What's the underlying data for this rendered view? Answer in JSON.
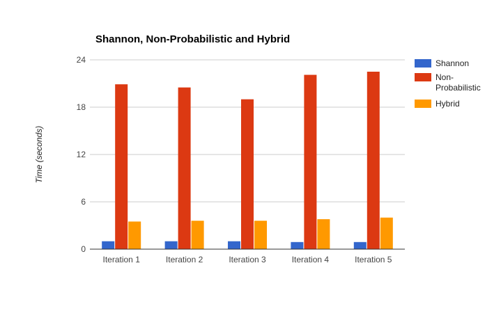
{
  "chart_data": {
    "type": "bar",
    "title": "Shannon, Non-Probabilistic and Hybrid",
    "xlabel": "",
    "ylabel": "Time (seconds)",
    "ylim": [
      0,
      24
    ],
    "yticks": [
      "0",
      "6",
      "12",
      "18",
      "24"
    ],
    "grid": true,
    "legend_position": "right",
    "categories": [
      "Iteration 1",
      "Iteration 2",
      "Iteration 3",
      "Iteration 4",
      "Iteration 5"
    ],
    "series": [
      {
        "name": "Shannon",
        "legend_lines": [
          "Shannon"
        ],
        "color": "#3366cc",
        "values": [
          1.0,
          1.0,
          1.0,
          0.9,
          0.9
        ]
      },
      {
        "name": "Non-Probabilistic",
        "legend_lines": [
          "Non-",
          "Probabilistic"
        ],
        "color": "#dc3912",
        "values": [
          20.9,
          20.5,
          19.0,
          22.1,
          22.5
        ]
      },
      {
        "name": "Hybrid",
        "legend_lines": [
          "Hybrid"
        ],
        "color": "#ff9900",
        "values": [
          3.5,
          3.6,
          3.6,
          3.8,
          4.0
        ]
      }
    ]
  }
}
